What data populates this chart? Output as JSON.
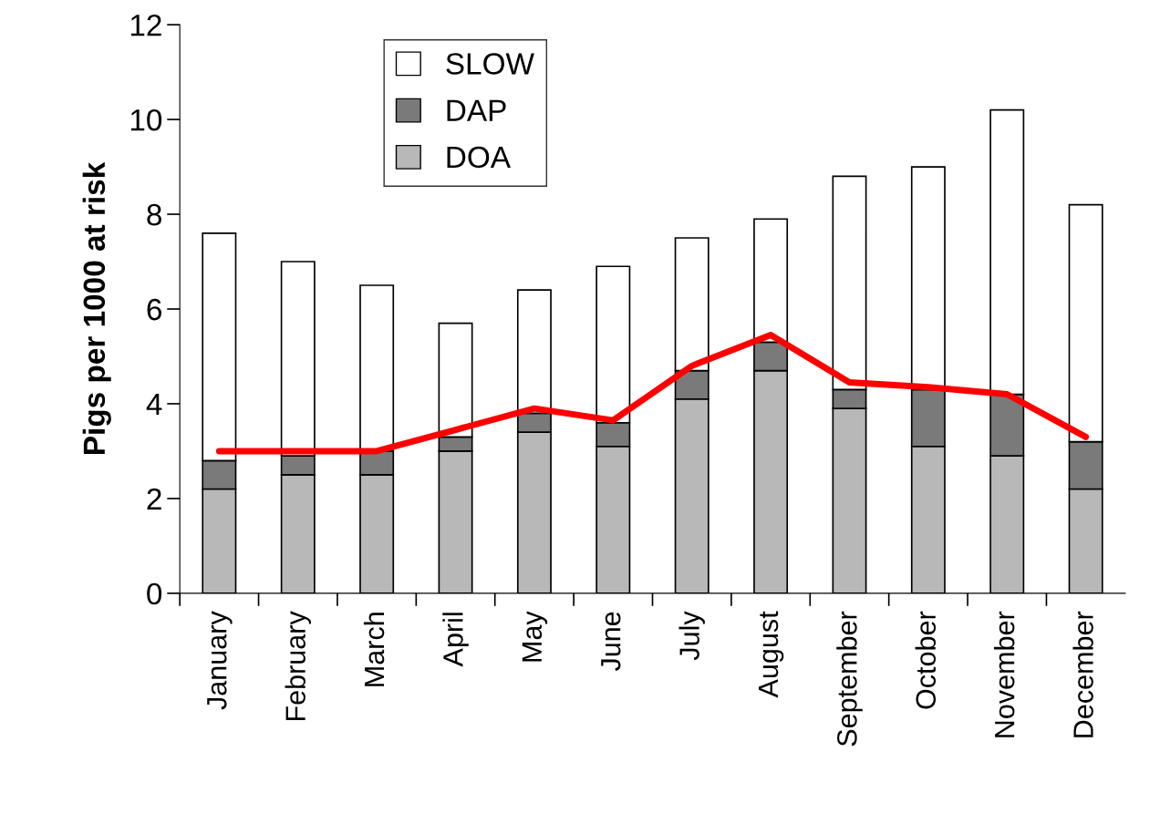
{
  "chart_data": {
    "type": "bar",
    "stacked": true,
    "ylabel": "Pigs per 1000 at risk",
    "categories": [
      "January",
      "February",
      "March",
      "April",
      "May",
      "June",
      "July",
      "August",
      "September",
      "October",
      "November",
      "December"
    ],
    "series": [
      {
        "name": "DOA",
        "color": "#b8b8b8",
        "values": [
          2.2,
          2.5,
          2.5,
          3.0,
          3.4,
          3.1,
          4.1,
          4.7,
          3.9,
          3.1,
          2.9,
          2.2
        ]
      },
      {
        "name": "DAP",
        "color": "#7a7a7a",
        "values": [
          0.6,
          0.4,
          0.5,
          0.3,
          0.4,
          0.5,
          0.6,
          0.6,
          0.4,
          1.2,
          1.3,
          1.0
        ]
      },
      {
        "name": "SLOW",
        "color": "#ffffff",
        "values": [
          4.8,
          4.1,
          3.5,
          2.4,
          2.6,
          3.3,
          2.8,
          2.6,
          4.5,
          4.7,
          6.0,
          5.0
        ]
      },
      {
        "type": "line",
        "color": "#ff0000",
        "line_style": "solid",
        "values": [
          3.0,
          3.0,
          3.0,
          3.45,
          3.9,
          3.65,
          4.8,
          5.45,
          4.45,
          4.35,
          4.2,
          3.3
        ]
      }
    ],
    "ylim": [
      0,
      12
    ],
    "yticks": [
      0,
      2,
      4,
      6,
      8,
      10,
      12
    ],
    "grid": false,
    "legend": "top left"
  }
}
